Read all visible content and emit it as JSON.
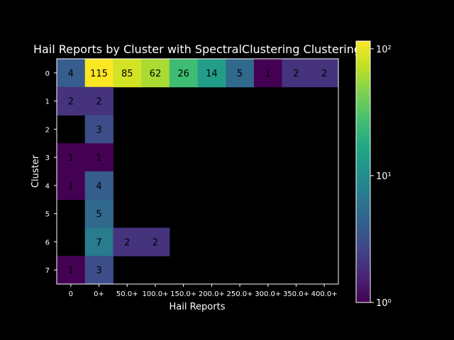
{
  "chart_data": {
    "type": "heatmap",
    "title": "Hail Reports by Cluster with SpectralClustering Clustering",
    "xlabel": "Hail Reports",
    "ylabel": "Cluster",
    "x_categories": [
      "0",
      "0+",
      "50.0+",
      "100.0+",
      "150.0+",
      "200.0+",
      "250.0+",
      "300.0+",
      "350.0+",
      "400.0+"
    ],
    "y_categories": [
      "0",
      "1",
      "2",
      "3",
      "4",
      "5",
      "6",
      "7"
    ],
    "values": [
      [
        4,
        115,
        85,
        62,
        26,
        14,
        5,
        1,
        2,
        2
      ],
      [
        2,
        2,
        null,
        null,
        null,
        null,
        null,
        null,
        null,
        null
      ],
      [
        null,
        3,
        null,
        null,
        null,
        null,
        null,
        null,
        null,
        null
      ],
      [
        1,
        1,
        null,
        null,
        null,
        null,
        null,
        null,
        null,
        null
      ],
      [
        1,
        4,
        null,
        null,
        null,
        null,
        null,
        null,
        null,
        null
      ],
      [
        null,
        5,
        null,
        null,
        null,
        null,
        null,
        null,
        null,
        null
      ],
      [
        null,
        7,
        2,
        2,
        null,
        null,
        null,
        null,
        null,
        null
      ],
      [
        1,
        3,
        null,
        null,
        null,
        null,
        null,
        null,
        null,
        null
      ]
    ],
    "colorbar": {
      "scale": "log",
      "colormap": "viridis",
      "range": [
        1,
        115
      ],
      "tick_values": [
        1,
        10,
        100
      ],
      "tick_labels": [
        "10⁰",
        "10¹",
        "10²"
      ]
    },
    "grid": false,
    "background": "#000000",
    "text_color": "#ffffff",
    "annotation_color": "#000000"
  }
}
